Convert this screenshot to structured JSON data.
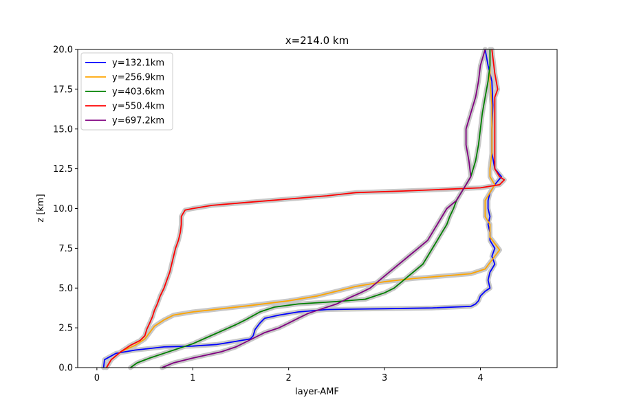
{
  "chart_data": {
    "type": "line",
    "title": "x=214.0 km",
    "xlabel": "layer-AMF",
    "ylabel": "z [km]",
    "xlim": [
      -0.2,
      4.8
    ],
    "ylim": [
      0,
      20
    ],
    "xticks": [
      0,
      1,
      2,
      3,
      4
    ],
    "yticks": [
      0.0,
      2.5,
      5.0,
      7.5,
      10.0,
      12.5,
      15.0,
      17.5,
      20.0
    ],
    "xtick_labels": [
      "0",
      "1",
      "2",
      "3",
      "4"
    ],
    "ytick_labels": [
      "0.0",
      "2.5",
      "5.0",
      "7.5",
      "10.0",
      "12.5",
      "15.0",
      "17.5",
      "20.0"
    ],
    "grid": false,
    "legend_position": "top-left",
    "uncertainty_band_color": "#c8c8c8",
    "series": [
      {
        "name": "y=132.1km",
        "color": "#0000ff",
        "points": [
          [
            0.07,
            0.0
          ],
          [
            0.08,
            0.5
          ],
          [
            0.2,
            0.9
          ],
          [
            0.4,
            1.1
          ],
          [
            0.7,
            1.3
          ],
          [
            1.0,
            1.35
          ],
          [
            1.25,
            1.45
          ],
          [
            1.4,
            1.6
          ],
          [
            1.5,
            1.7
          ],
          [
            1.6,
            1.8
          ],
          [
            1.63,
            2.0
          ],
          [
            1.65,
            2.4
          ],
          [
            1.7,
            2.8
          ],
          [
            1.75,
            3.1
          ],
          [
            1.9,
            3.3
          ],
          [
            2.1,
            3.5
          ],
          [
            2.4,
            3.65
          ],
          [
            3.0,
            3.7
          ],
          [
            3.5,
            3.75
          ],
          [
            3.9,
            3.85
          ],
          [
            3.95,
            4.0
          ],
          [
            3.98,
            4.2
          ],
          [
            4.0,
            4.5
          ],
          [
            4.05,
            4.8
          ],
          [
            4.1,
            5.0
          ],
          [
            4.08,
            5.5
          ],
          [
            4.1,
            6.0
          ],
          [
            4.15,
            6.5
          ],
          [
            4.12,
            7.0
          ],
          [
            4.15,
            7.5
          ],
          [
            4.1,
            8.0
          ],
          [
            4.1,
            8.5
          ],
          [
            4.08,
            9.0
          ],
          [
            4.1,
            9.5
          ],
          [
            4.08,
            10.0
          ],
          [
            4.08,
            10.5
          ],
          [
            4.1,
            11.0
          ],
          [
            4.15,
            11.5
          ],
          [
            4.22,
            12.0
          ],
          [
            4.15,
            12.5
          ],
          [
            4.12,
            13.5
          ],
          [
            4.12,
            15.0
          ],
          [
            4.13,
            16.5
          ],
          [
            4.12,
            18.0
          ],
          [
            4.08,
            19.0
          ],
          [
            4.05,
            20.0
          ]
        ]
      },
      {
        "name": "y=256.9km",
        "color": "#ffa500",
        "points": [
          [
            0.1,
            0.0
          ],
          [
            0.15,
            0.5
          ],
          [
            0.25,
            1.0
          ],
          [
            0.4,
            1.4
          ],
          [
            0.5,
            1.8
          ],
          [
            0.55,
            2.2
          ],
          [
            0.6,
            2.6
          ],
          [
            0.7,
            3.0
          ],
          [
            0.8,
            3.3
          ],
          [
            1.0,
            3.5
          ],
          [
            1.3,
            3.7
          ],
          [
            1.6,
            3.9
          ],
          [
            2.0,
            4.2
          ],
          [
            2.3,
            4.5
          ],
          [
            2.5,
            4.8
          ],
          [
            2.7,
            5.1
          ],
          [
            3.0,
            5.4
          ],
          [
            3.3,
            5.6
          ],
          [
            3.6,
            5.75
          ],
          [
            3.9,
            5.9
          ],
          [
            4.05,
            6.2
          ],
          [
            4.1,
            6.6
          ],
          [
            4.15,
            7.0
          ],
          [
            4.2,
            7.4
          ],
          [
            4.15,
            7.8
          ],
          [
            4.1,
            8.2
          ],
          [
            4.1,
            8.6
          ],
          [
            4.1,
            9.0
          ],
          [
            4.05,
            9.5
          ],
          [
            4.05,
            10.0
          ],
          [
            4.05,
            10.5
          ],
          [
            4.1,
            11.0
          ],
          [
            4.15,
            11.5
          ],
          [
            4.1,
            12.0
          ],
          [
            4.1,
            12.5
          ],
          [
            4.12,
            13.5
          ],
          [
            4.12,
            15.0
          ],
          [
            4.12,
            16.5
          ],
          [
            4.1,
            18.0
          ],
          [
            4.1,
            19.0
          ],
          [
            4.1,
            20.0
          ]
        ]
      },
      {
        "name": "y=403.6km",
        "color": "#008000",
        "points": [
          [
            0.35,
            0.0
          ],
          [
            0.42,
            0.3
          ],
          [
            0.55,
            0.6
          ],
          [
            0.7,
            0.9
          ],
          [
            0.85,
            1.2
          ],
          [
            1.0,
            1.5
          ],
          [
            1.15,
            1.9
          ],
          [
            1.3,
            2.3
          ],
          [
            1.45,
            2.7
          ],
          [
            1.55,
            3.0
          ],
          [
            1.7,
            3.5
          ],
          [
            1.85,
            3.8
          ],
          [
            2.1,
            4.0
          ],
          [
            2.5,
            4.15
          ],
          [
            2.8,
            4.3
          ],
          [
            3.0,
            4.7
          ],
          [
            3.1,
            5.0
          ],
          [
            3.2,
            5.5
          ],
          [
            3.3,
            6.0
          ],
          [
            3.4,
            6.5
          ],
          [
            3.45,
            7.0
          ],
          [
            3.5,
            7.5
          ],
          [
            3.55,
            8.0
          ],
          [
            3.6,
            8.5
          ],
          [
            3.65,
            9.0
          ],
          [
            3.68,
            9.5
          ],
          [
            3.72,
            10.0
          ],
          [
            3.75,
            10.5
          ],
          [
            3.8,
            11.0
          ],
          [
            3.85,
            11.5
          ],
          [
            3.9,
            12.0
          ],
          [
            3.95,
            13.0
          ],
          [
            3.98,
            14.0
          ],
          [
            4.0,
            15.0
          ],
          [
            4.02,
            16.0
          ],
          [
            4.05,
            17.0
          ],
          [
            4.08,
            18.0
          ],
          [
            4.1,
            19.0
          ],
          [
            4.1,
            20.0
          ]
        ]
      },
      {
        "name": "y=550.4km",
        "color": "#ff0000",
        "points": [
          [
            0.1,
            0.0
          ],
          [
            0.15,
            0.5
          ],
          [
            0.25,
            1.0
          ],
          [
            0.35,
            1.4
          ],
          [
            0.45,
            1.7
          ],
          [
            0.5,
            2.0
          ],
          [
            0.52,
            2.4
          ],
          [
            0.55,
            2.8
          ],
          [
            0.58,
            3.2
          ],
          [
            0.6,
            3.6
          ],
          [
            0.63,
            4.0
          ],
          [
            0.66,
            4.5
          ],
          [
            0.7,
            5.0
          ],
          [
            0.73,
            5.5
          ],
          [
            0.76,
            6.0
          ],
          [
            0.78,
            6.5
          ],
          [
            0.8,
            7.0
          ],
          [
            0.82,
            7.5
          ],
          [
            0.85,
            8.0
          ],
          [
            0.87,
            8.5
          ],
          [
            0.88,
            9.0
          ],
          [
            0.88,
            9.5
          ],
          [
            0.92,
            9.9
          ],
          [
            1.0,
            10.0
          ],
          [
            1.2,
            10.2
          ],
          [
            1.6,
            10.4
          ],
          [
            2.0,
            10.6
          ],
          [
            2.4,
            10.8
          ],
          [
            2.7,
            11.0
          ],
          [
            3.2,
            11.1
          ],
          [
            3.6,
            11.2
          ],
          [
            4.0,
            11.3
          ],
          [
            4.2,
            11.5
          ],
          [
            4.25,
            11.8
          ],
          [
            4.2,
            12.0
          ],
          [
            4.15,
            12.5
          ],
          [
            4.15,
            14.0
          ],
          [
            4.15,
            15.5
          ],
          [
            4.15,
            17.0
          ],
          [
            4.18,
            17.5
          ],
          [
            4.15,
            18.5
          ],
          [
            4.12,
            20.0
          ]
        ]
      },
      {
        "name": "y=697.2km",
        "color": "#800080",
        "points": [
          [
            0.68,
            0.0
          ],
          [
            0.8,
            0.3
          ],
          [
            1.0,
            0.6
          ],
          [
            1.15,
            0.8
          ],
          [
            1.3,
            1.0
          ],
          [
            1.45,
            1.3
          ],
          [
            1.55,
            1.6
          ],
          [
            1.65,
            1.9
          ],
          [
            1.75,
            2.2
          ],
          [
            1.9,
            2.5
          ],
          [
            2.0,
            2.8
          ],
          [
            2.1,
            3.1
          ],
          [
            2.2,
            3.4
          ],
          [
            2.35,
            3.7
          ],
          [
            2.5,
            4.0
          ],
          [
            2.6,
            4.3
          ],
          [
            2.75,
            4.7
          ],
          [
            2.85,
            5.0
          ],
          [
            2.95,
            5.5
          ],
          [
            3.05,
            6.0
          ],
          [
            3.15,
            6.5
          ],
          [
            3.25,
            7.0
          ],
          [
            3.35,
            7.5
          ],
          [
            3.45,
            8.0
          ],
          [
            3.5,
            8.5
          ],
          [
            3.55,
            9.0
          ],
          [
            3.6,
            9.5
          ],
          [
            3.65,
            10.0
          ],
          [
            3.75,
            10.5
          ],
          [
            3.8,
            11.0
          ],
          [
            3.85,
            11.5
          ],
          [
            3.9,
            12.0
          ],
          [
            3.88,
            13.0
          ],
          [
            3.85,
            14.0
          ],
          [
            3.85,
            15.0
          ],
          [
            3.9,
            16.0
          ],
          [
            3.95,
            17.0
          ],
          [
            3.98,
            18.0
          ],
          [
            4.0,
            19.0
          ],
          [
            4.05,
            20.0
          ]
        ]
      }
    ]
  }
}
